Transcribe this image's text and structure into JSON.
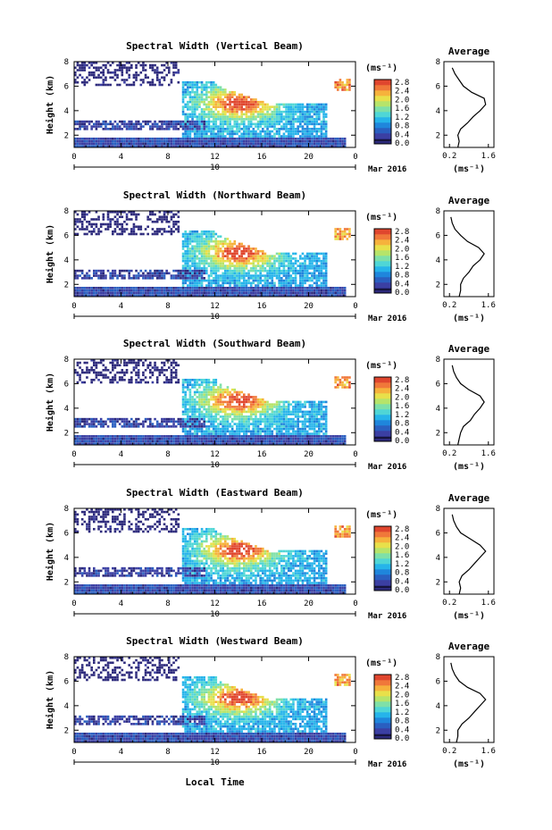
{
  "figure": {
    "bottom_xlabel": "Local Time",
    "date_label": "Mar 2016"
  },
  "colors": {
    "scale": [
      "#2d2a7c",
      "#3b3fa3",
      "#2a5fc0",
      "#1f86dc",
      "#26b4ea",
      "#4fd6d6",
      "#7ee0a8",
      "#b6e46a",
      "#e8e04a",
      "#f6b23c",
      "#f0783a",
      "#e0462e"
    ]
  },
  "chart_data": [
    {
      "type": "heatmap",
      "title": "Spectral Width (Vertical Beam)",
      "ylabel": "Height (km)",
      "x_ticks": [
        "0",
        "4",
        "8",
        "12",
        "16",
        "20",
        "0"
      ],
      "x_range": [
        0,
        24
      ],
      "y_ticks": [
        "2",
        "4",
        "6",
        "8"
      ],
      "y_range": [
        1,
        8
      ],
      "date_day": "10",
      "colorbar": {
        "unit": "(ms⁻¹)",
        "ticks": [
          "2.8",
          "2.4",
          "2.0",
          "1.6",
          "1.2",
          "0.8",
          "0.4",
          "0.0"
        ]
      },
      "average": {
        "title": "Average",
        "xlabel": "(ms⁻¹)",
        "x_ticks": [
          "0.2",
          "1.6"
        ],
        "y_ticks": [
          "2",
          "4",
          "6",
          "8"
        ],
        "height_km": [
          1.0,
          1.5,
          2.0,
          2.5,
          3.0,
          3.5,
          4.0,
          4.5,
          5.0,
          5.5,
          6.0,
          6.5,
          7.0,
          7.5
        ],
        "width_ms": [
          0.5,
          0.55,
          0.5,
          0.6,
          0.85,
          1.05,
          1.3,
          1.5,
          1.45,
          1.0,
          0.7,
          0.55,
          0.4,
          0.3
        ]
      }
    },
    {
      "type": "heatmap",
      "title": "Spectral Width (Northward Beam)",
      "ylabel": "Height (km)",
      "x_ticks": [
        "0",
        "4",
        "8",
        "12",
        "16",
        "20",
        "0"
      ],
      "x_range": [
        0,
        24
      ],
      "y_ticks": [
        "2",
        "4",
        "6",
        "8"
      ],
      "y_range": [
        1,
        8
      ],
      "date_day": "10",
      "colorbar": {
        "unit": "(ms⁻¹)",
        "ticks": [
          "2.8",
          "2.4",
          "2.0",
          "1.6",
          "1.2",
          "0.8",
          "0.4",
          "0.0"
        ]
      },
      "average": {
        "title": "Average",
        "xlabel": "(ms⁻¹)",
        "x_ticks": [
          "0.2",
          "1.6"
        ],
        "y_ticks": [
          "2",
          "4",
          "6",
          "8"
        ],
        "height_km": [
          1.0,
          1.5,
          2.0,
          2.5,
          3.0,
          3.5,
          4.0,
          4.5,
          5.0,
          5.5,
          6.0,
          6.5,
          7.0,
          7.5
        ],
        "width_ms": [
          0.55,
          0.6,
          0.6,
          0.7,
          0.9,
          1.05,
          1.3,
          1.45,
          1.25,
          0.85,
          0.6,
          0.4,
          0.3,
          0.25
        ]
      }
    },
    {
      "type": "heatmap",
      "title": "Spectral Width (Southward Beam)",
      "ylabel": "Height (km)",
      "x_ticks": [
        "0",
        "4",
        "8",
        "12",
        "16",
        "20",
        "0"
      ],
      "x_range": [
        0,
        24
      ],
      "y_ticks": [
        "2",
        "4",
        "6",
        "8"
      ],
      "y_range": [
        1,
        8
      ],
      "date_day": "10",
      "colorbar": {
        "unit": "(ms⁻¹)",
        "ticks": [
          "2.8",
          "2.4",
          "2.0",
          "1.6",
          "1.2",
          "0.8",
          "0.4",
          "0.0"
        ]
      },
      "average": {
        "title": "Average",
        "xlabel": "(ms⁻¹)",
        "x_ticks": [
          "0.2",
          "1.6"
        ],
        "y_ticks": [
          "2",
          "4",
          "6",
          "8"
        ],
        "height_km": [
          1.0,
          1.5,
          2.0,
          2.5,
          3.0,
          3.5,
          4.0,
          4.5,
          5.0,
          5.5,
          6.0,
          6.5,
          7.0,
          7.5
        ],
        "width_ms": [
          0.5,
          0.55,
          0.6,
          0.7,
          0.95,
          1.1,
          1.3,
          1.45,
          1.3,
          0.9,
          0.6,
          0.45,
          0.35,
          0.3
        ]
      }
    },
    {
      "type": "heatmap",
      "title": "Spectral Width (Eastward Beam)",
      "ylabel": "Height (km)",
      "x_ticks": [
        "0",
        "4",
        "8",
        "12",
        "16",
        "20",
        "0"
      ],
      "x_range": [
        0,
        24
      ],
      "y_ticks": [
        "2",
        "4",
        "6",
        "8"
      ],
      "y_range": [
        1,
        8
      ],
      "date_day": "10",
      "colorbar": {
        "unit": "(ms⁻¹)",
        "ticks": [
          "2.8",
          "2.4",
          "2.0",
          "1.6",
          "1.2",
          "0.8",
          "0.4",
          "0.0"
        ]
      },
      "average": {
        "title": "Average",
        "xlabel": "(ms⁻¹)",
        "x_ticks": [
          "0.2",
          "1.6"
        ],
        "y_ticks": [
          "2",
          "4",
          "6",
          "8"
        ],
        "height_km": [
          1.0,
          1.5,
          2.0,
          2.5,
          3.0,
          3.5,
          4.0,
          4.5,
          5.0,
          5.5,
          6.0,
          6.5,
          7.0,
          7.5
        ],
        "width_ms": [
          0.55,
          0.6,
          0.55,
          0.65,
          0.9,
          1.1,
          1.3,
          1.5,
          1.3,
          0.95,
          0.6,
          0.45,
          0.35,
          0.3
        ]
      }
    },
    {
      "type": "heatmap",
      "title": "Spectral Width (Westward Beam)",
      "ylabel": "Height (km)",
      "x_ticks": [
        "0",
        "4",
        "8",
        "12",
        "16",
        "20",
        "0"
      ],
      "x_range": [
        0,
        24
      ],
      "y_ticks": [
        "2",
        "4",
        "6",
        "8"
      ],
      "y_range": [
        1,
        8
      ],
      "date_day": "10",
      "colorbar": {
        "unit": "(ms⁻¹)",
        "ticks": [
          "2.8",
          "2.4",
          "2.0",
          "1.6",
          "1.2",
          "0.8",
          "0.4",
          "0.0"
        ]
      },
      "average": {
        "title": "Average",
        "xlabel": "(ms⁻¹)",
        "x_ticks": [
          "0.2",
          "1.6"
        ],
        "y_ticks": [
          "2",
          "4",
          "6",
          "8"
        ],
        "height_km": [
          1.0,
          1.5,
          2.0,
          2.5,
          3.0,
          3.5,
          4.0,
          4.5,
          5.0,
          5.5,
          6.0,
          6.5,
          7.0,
          7.5
        ],
        "width_ms": [
          0.45,
          0.5,
          0.5,
          0.65,
          0.9,
          1.1,
          1.3,
          1.5,
          1.3,
          0.85,
          0.55,
          0.4,
          0.3,
          0.25
        ]
      }
    }
  ]
}
